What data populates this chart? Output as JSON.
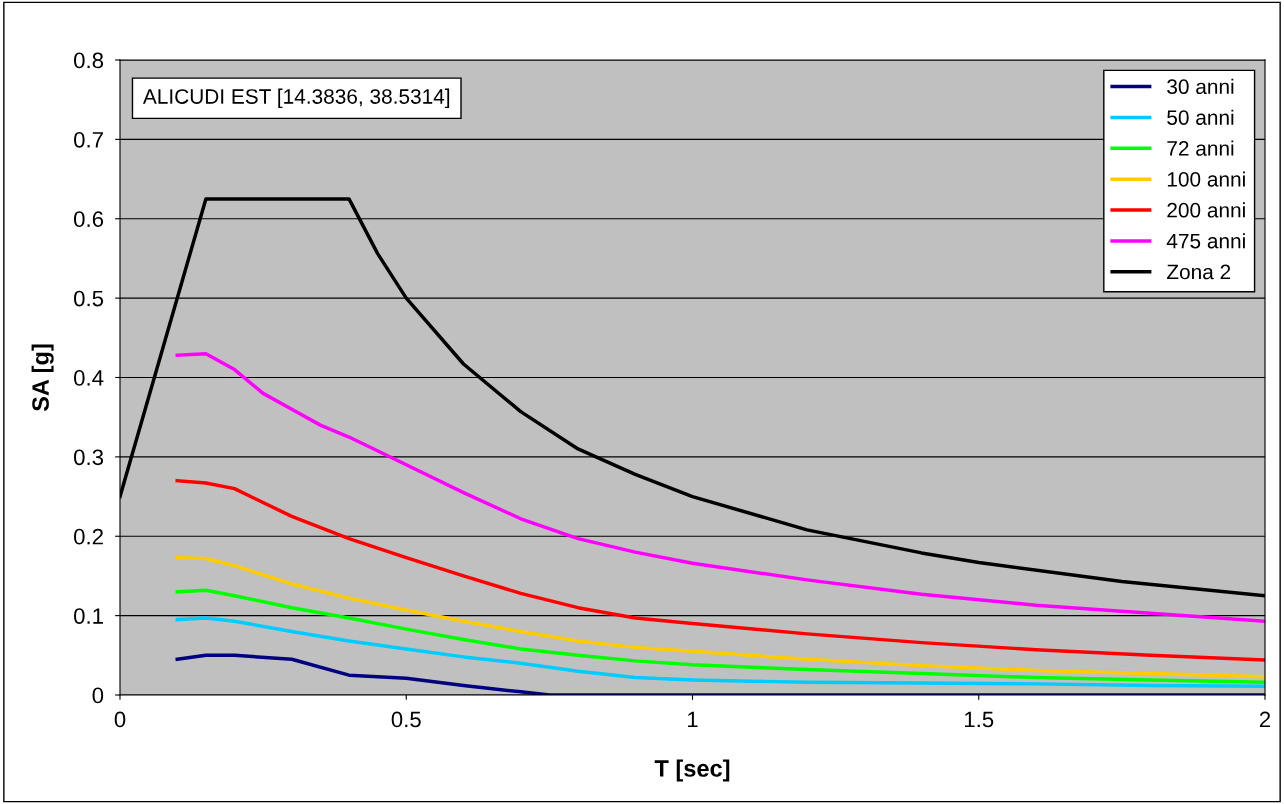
{
  "chart_data": {
    "type": "line",
    "xlabel": "T [sec]",
    "ylabel": "SA [g]",
    "xlim": [
      0,
      2
    ],
    "xticks": [
      0,
      0.5,
      1,
      1.5,
      2
    ],
    "ylim": [
      0,
      0.8
    ],
    "yticks": [
      0,
      0.1,
      0.2,
      0.3,
      0.4,
      0.5,
      0.6,
      0.7,
      0.8
    ],
    "grid": "y",
    "legend": "top right",
    "marker": "none",
    "line_style": "solid",
    "annotations": [
      "ALICUDI EST [14.3836, 38.5314]"
    ],
    "series": [
      {
        "name": "30 anni",
        "color": "#000080",
        "x": [
          0.1,
          0.15,
          0.2,
          0.3,
          0.4,
          0.5,
          0.6,
          0.7,
          0.75,
          1.0,
          1.5,
          2.0
        ],
        "values": [
          0.045,
          0.05,
          0.05,
          0.045,
          0.025,
          0.021,
          0.012,
          0.004,
          0,
          0,
          0,
          0
        ]
      },
      {
        "name": "50 anni",
        "color": "#00ccff",
        "x": [
          0.1,
          0.15,
          0.2,
          0.3,
          0.4,
          0.5,
          0.6,
          0.7,
          0.8,
          0.9,
          1.0,
          1.2,
          1.4,
          1.6,
          1.8,
          2.0
        ],
        "values": [
          0.095,
          0.097,
          0.093,
          0.08,
          0.068,
          0.058,
          0.048,
          0.04,
          0.03,
          0.022,
          0.019,
          0.016,
          0.015,
          0.014,
          0.012,
          0.011
        ]
      },
      {
        "name": "72 anni",
        "color": "#00ff00",
        "x": [
          0.1,
          0.15,
          0.2,
          0.3,
          0.4,
          0.5,
          0.6,
          0.7,
          0.8,
          0.9,
          1.0,
          1.2,
          1.4,
          1.6,
          1.8,
          2.0
        ],
        "values": [
          0.13,
          0.132,
          0.125,
          0.11,
          0.097,
          0.083,
          0.07,
          0.058,
          0.05,
          0.043,
          0.038,
          0.032,
          0.027,
          0.022,
          0.019,
          0.016
        ]
      },
      {
        "name": "100 anni",
        "color": "#ffcc00",
        "x": [
          0.1,
          0.15,
          0.2,
          0.3,
          0.4,
          0.5,
          0.6,
          0.7,
          0.8,
          0.9,
          1.0,
          1.2,
          1.4,
          1.6,
          1.8,
          2.0
        ],
        "values": [
          0.173,
          0.172,
          0.163,
          0.14,
          0.122,
          0.107,
          0.093,
          0.08,
          0.068,
          0.06,
          0.055,
          0.045,
          0.037,
          0.031,
          0.027,
          0.023
        ]
      },
      {
        "name": "200 anni",
        "color": "#ff0000",
        "x": [
          0.1,
          0.15,
          0.2,
          0.3,
          0.4,
          0.5,
          0.6,
          0.7,
          0.8,
          0.9,
          1.0,
          1.2,
          1.4,
          1.6,
          1.8,
          2.0
        ],
        "values": [
          0.27,
          0.267,
          0.26,
          0.225,
          0.197,
          0.173,
          0.15,
          0.128,
          0.11,
          0.097,
          0.09,
          0.077,
          0.066,
          0.057,
          0.05,
          0.044
        ]
      },
      {
        "name": "475 anni",
        "color": "#ff00ff",
        "x": [
          0.1,
          0.15,
          0.2,
          0.25,
          0.3,
          0.35,
          0.4,
          0.5,
          0.6,
          0.7,
          0.8,
          0.9,
          1.0,
          1.2,
          1.4,
          1.6,
          1.8,
          2.0
        ],
        "values": [
          0.428,
          0.43,
          0.41,
          0.38,
          0.36,
          0.34,
          0.325,
          0.29,
          0.255,
          0.222,
          0.197,
          0.18,
          0.166,
          0.145,
          0.127,
          0.113,
          0.103,
          0.093
        ]
      },
      {
        "name": "Zona 2",
        "color": "#000000",
        "x": [
          0,
          0.15,
          0.4,
          0.45,
          0.5,
          0.6,
          0.7,
          0.8,
          0.9,
          1.0,
          1.2,
          1.4,
          1.5,
          1.75,
          2.0
        ],
        "values": [
          0.25,
          0.625,
          0.625,
          0.556,
          0.5,
          0.417,
          0.357,
          0.31,
          0.278,
          0.25,
          0.208,
          0.179,
          0.167,
          0.143,
          0.125
        ]
      }
    ]
  }
}
